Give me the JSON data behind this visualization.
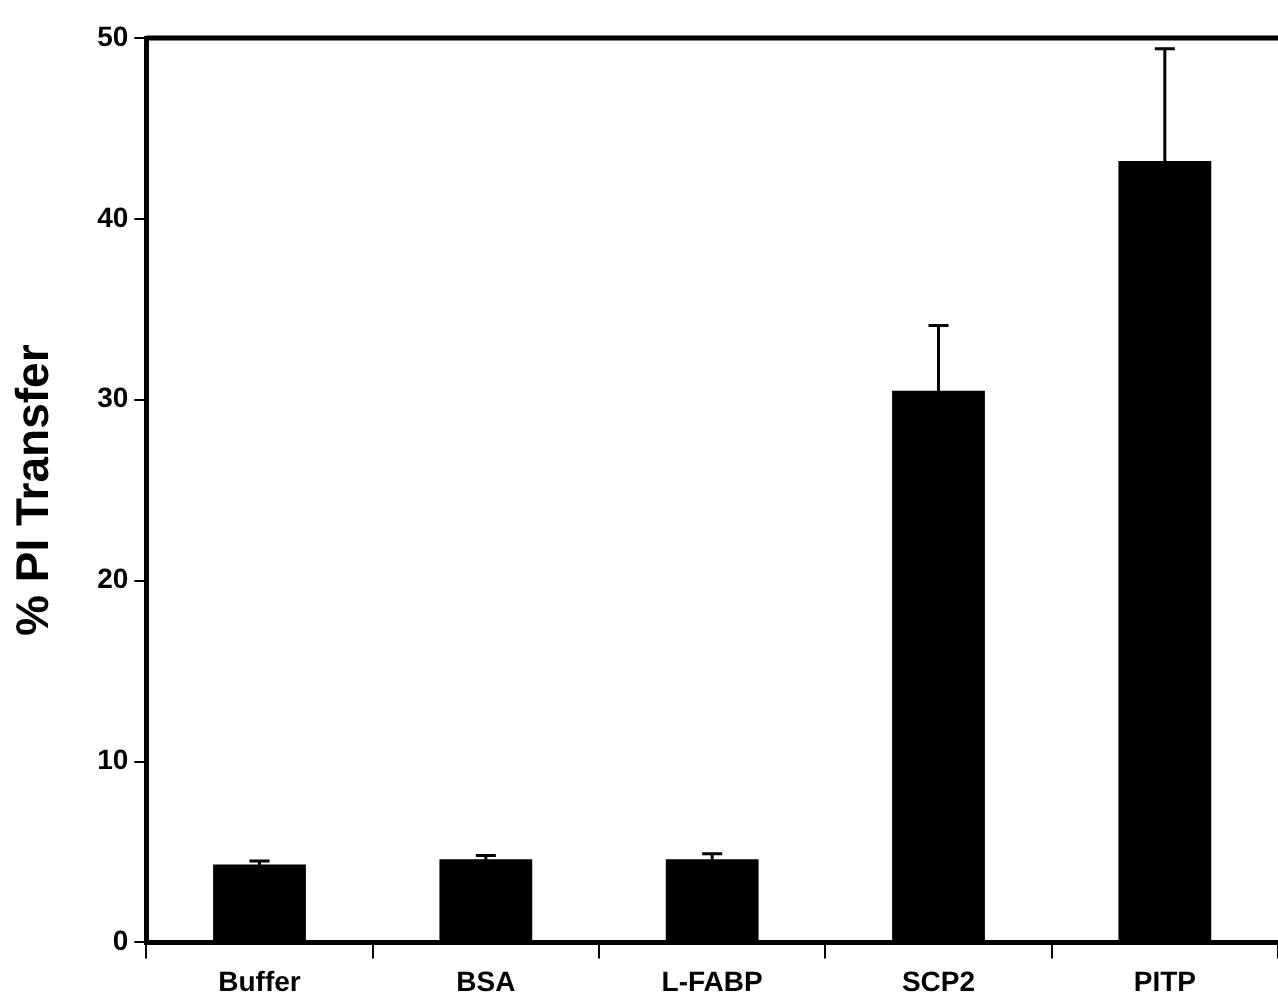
{
  "chart_data": {
    "type": "bar",
    "ylabel": "% PI Transfer",
    "categories": [
      "Buffer",
      "BSA",
      "L-FABP",
      "SCP2",
      "PITP"
    ],
    "values": [
      4.3,
      4.6,
      4.6,
      30.5,
      43.2
    ],
    "errors": [
      0.2,
      0.2,
      0.3,
      3.6,
      6.2
    ],
    "color": "#000000",
    "ylim": [
      0,
      50
    ],
    "yticks": [
      0,
      10,
      20,
      30,
      40,
      50
    ],
    "grid": false,
    "legend": false
  }
}
